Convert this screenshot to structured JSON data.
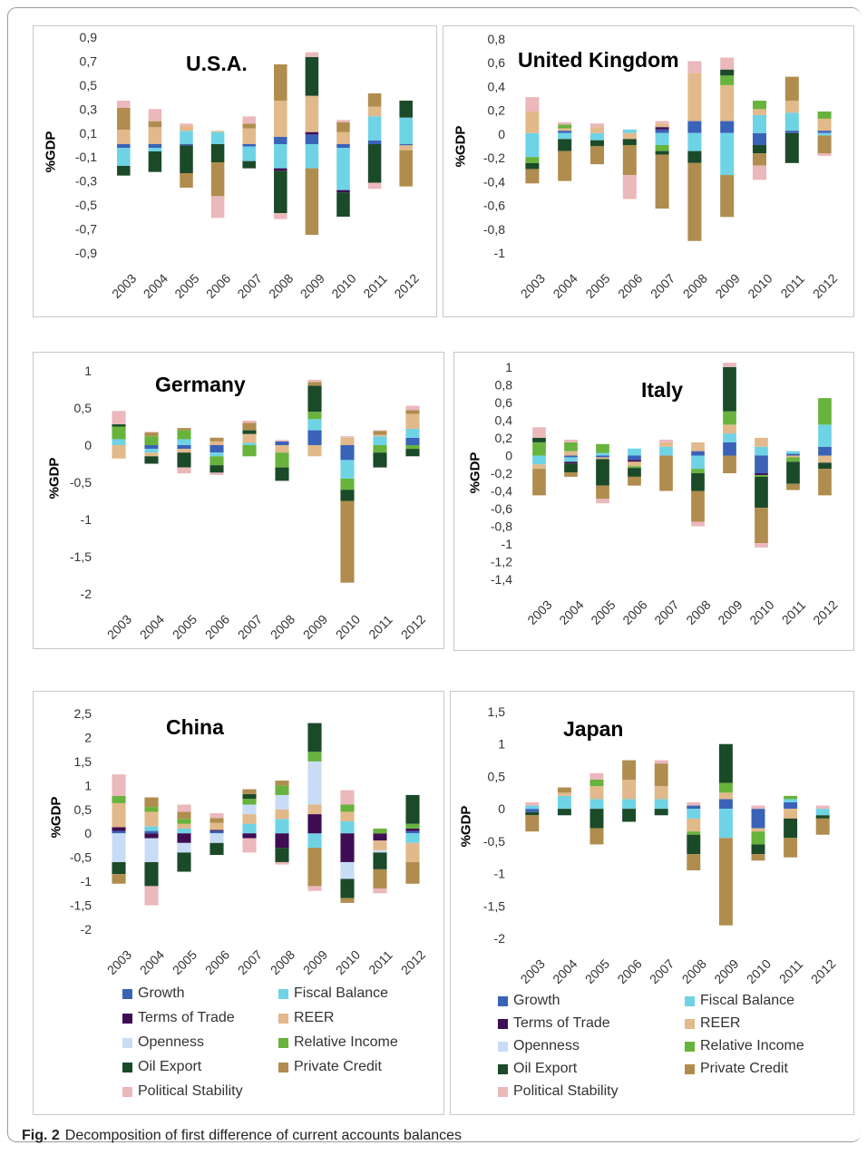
{
  "colors": {
    "Growth": "#3a63b8",
    "Fiscal Balance": "#6fd3e6",
    "Terms of Trade": "#3e0d53",
    "REER": "#e2b98a",
    "Openness": "#c9dcf5",
    "Relative Income": "#67b33c",
    "Oil Export": "#1b4a29",
    "Private Credit": "#b08d4e",
    "Political Stability": "#ebb8bb"
  },
  "legend": {
    "items": [
      "Growth",
      "Fiscal Balance",
      "Terms of Trade",
      "REER",
      "Openness",
      "Relative Income",
      "Oil Export",
      "Private Credit",
      "Political Stability"
    ]
  },
  "caption": {
    "label": "Fig. 2",
    "text": "Decomposition of first difference of current accounts balances"
  },
  "chart_data": [
    {
      "type": "bar",
      "stacked": true,
      "title": "U.S.A.",
      "ylabel": "%GDP",
      "categories": [
        "2003",
        "2004",
        "2005",
        "2006",
        "2007",
        "2008",
        "2009",
        "2010",
        "2011",
        "2012"
      ],
      "ylim": [
        -0.9,
        0.9
      ],
      "yticks": [
        "0,9",
        "0,7",
        "0,5",
        "0,3",
        "0,1",
        "-0,1",
        "-0,3",
        "-0,5",
        "-0,7",
        "-0,9"
      ],
      "series": [
        {
          "name": "Growth",
          "values": [
            -0.03,
            -0.03,
            -0.01,
            0,
            -0.02,
            0.06,
            0.08,
            -0.03,
            0.03,
            -0.01
          ]
        },
        {
          "name": "Fiscal Balance",
          "values": [
            -0.15,
            -0.03,
            0.11,
            0.1,
            -0.12,
            -0.2,
            -0.2,
            -0.35,
            0.2,
            0.22
          ]
        },
        {
          "name": "Terms of Trade",
          "values": [
            0,
            0,
            0,
            0,
            0,
            -0.02,
            0.02,
            -0.02,
            0,
            0
          ]
        },
        {
          "name": "REER",
          "values": [
            0.12,
            0.14,
            0.04,
            0.01,
            0.13,
            0.3,
            0.3,
            0.1,
            0.08,
            -0.04
          ]
        },
        {
          "name": "Openness",
          "values": [
            0,
            0,
            0,
            0,
            0,
            0,
            0,
            0,
            0,
            0
          ]
        },
        {
          "name": "Relative Income",
          "values": [
            0,
            0,
            0,
            0,
            0,
            0,
            0,
            0,
            0,
            0
          ]
        },
        {
          "name": "Oil Export",
          "values": [
            -0.08,
            -0.17,
            -0.23,
            -0.15,
            -0.06,
            -0.35,
            0.32,
            -0.2,
            -0.32,
            0.14
          ]
        },
        {
          "name": "Private Credit",
          "values": [
            0.18,
            0.05,
            -0.12,
            -0.28,
            0.04,
            0.3,
            -0.55,
            0.08,
            0.11,
            -0.3
          ]
        },
        {
          "name": "Political Stability",
          "values": [
            0.06,
            0.1,
            0.02,
            -0.18,
            0.06,
            -0.05,
            0.04,
            0.02,
            -0.05,
            0
          ]
        }
      ]
    },
    {
      "type": "bar",
      "stacked": true,
      "title": "United Kingdom",
      "ylabel": "%GDP",
      "categories": [
        "2003",
        "2004",
        "2005",
        "2006",
        "2007",
        "2008",
        "2009",
        "2010",
        "2011",
        "2012"
      ],
      "ylim": [
        -1,
        0.8
      ],
      "yticks": [
        "0,8",
        "0,6",
        "0,4",
        "0,2",
        "0",
        "-0,2",
        "-0,4",
        "-0,6",
        "-0,8",
        "-1"
      ],
      "series": [
        {
          "name": "Growth",
          "values": [
            0,
            0.02,
            0,
            0,
            0.03,
            0.1,
            0.1,
            -0.1,
            0.02,
            0.02
          ]
        },
        {
          "name": "Fiscal Balance",
          "values": [
            -0.2,
            -0.05,
            -0.06,
            0.03,
            -0.1,
            -0.15,
            -0.35,
            0.15,
            0.15,
            -0.02
          ]
        },
        {
          "name": "Terms of Trade",
          "values": [
            0,
            0,
            0,
            0,
            0.02,
            0,
            0,
            0,
            0,
            0
          ]
        },
        {
          "name": "REER",
          "values": [
            0.18,
            0.02,
            0.05,
            -0.05,
            0.03,
            0.4,
            0.3,
            0.05,
            0.1,
            0.1
          ]
        },
        {
          "name": "Openness",
          "values": [
            0,
            0,
            0,
            0,
            0,
            0,
            0,
            0,
            0,
            0
          ]
        },
        {
          "name": "Relative Income",
          "values": [
            -0.05,
            0.03,
            0,
            0,
            -0.05,
            0,
            0.08,
            0.07,
            0,
            0.06
          ]
        },
        {
          "name": "Oil Export",
          "values": [
            -0.05,
            -0.1,
            -0.05,
            -0.05,
            -0.03,
            -0.1,
            0.05,
            -0.07,
            -0.25,
            0
          ]
        },
        {
          "name": "Private Credit",
          "values": [
            -0.12,
            -0.25,
            -0.15,
            -0.25,
            -0.45,
            -0.65,
            -0.35,
            -0.1,
            0.2,
            -0.15
          ]
        },
        {
          "name": "Political Stability",
          "values": [
            0.12,
            0.02,
            0.03,
            -0.2,
            0.02,
            0.1,
            0.1,
            -0.12,
            0,
            -0.02
          ]
        }
      ]
    },
    {
      "type": "bar",
      "stacked": true,
      "title": "Germany",
      "ylabel": "%GDP",
      "categories": [
        "2003",
        "2004",
        "2005",
        "2006",
        "2007",
        "2008",
        "2009",
        "2010",
        "2011",
        "2012"
      ],
      "ylim": [
        -2,
        1
      ],
      "yticks": [
        "1",
        "0,5",
        "0",
        "-0,5",
        "-1",
        "-1,5",
        "-2"
      ],
      "series": [
        {
          "name": "Growth",
          "values": [
            0,
            -0.05,
            -0.05,
            -0.1,
            0,
            0.05,
            0.2,
            -0.2,
            0,
            0.1
          ]
        },
        {
          "name": "Fiscal Balance",
          "values": [
            0.08,
            -0.05,
            0.08,
            -0.05,
            0.03,
            0,
            0.15,
            -0.25,
            0.12,
            0.12
          ]
        },
        {
          "name": "Terms of Trade",
          "values": [
            0,
            0,
            0,
            0,
            0,
            0,
            0,
            0,
            0,
            0
          ]
        },
        {
          "name": "REER",
          "values": [
            -0.18,
            -0.05,
            -0.05,
            0.05,
            0.12,
            -0.1,
            -0.15,
            0.1,
            0.02,
            0.2
          ]
        },
        {
          "name": "Openness",
          "values": [
            0,
            0,
            0,
            0,
            0,
            0,
            0,
            0,
            0,
            0
          ]
        },
        {
          "name": "Relative Income",
          "values": [
            0.17,
            0.12,
            0.12,
            -0.12,
            -0.15,
            -0.2,
            0.1,
            -0.15,
            -0.1,
            -0.05
          ]
        },
        {
          "name": "Oil Export",
          "values": [
            0.03,
            -0.1,
            -0.2,
            -0.1,
            0.05,
            -0.18,
            0.35,
            -0.15,
            -0.2,
            -0.1
          ]
        },
        {
          "name": "Private Credit",
          "values": [
            0,
            0.05,
            0.03,
            0.05,
            0.1,
            0,
            0.05,
            -1.1,
            0.05,
            0.05
          ]
        },
        {
          "name": "Political Stability",
          "values": [
            0.18,
            0.01,
            -0.08,
            -0.03,
            0.03,
            0.02,
            0.03,
            0.02,
            0.01,
            0.06
          ]
        }
      ]
    },
    {
      "type": "bar",
      "stacked": true,
      "title": "Italy",
      "ylabel": "%GDP",
      "categories": [
        "2003",
        "2004",
        "2005",
        "2006",
        "2007",
        "2008",
        "2009",
        "2010",
        "2011",
        "2012"
      ],
      "ylim": [
        -1.4,
        1
      ],
      "yticks": [
        "1",
        "0,8",
        "0,6",
        "0,4",
        "0,2",
        "0",
        "-0,2",
        "-0,4",
        "-0,6",
        "-0,8",
        "-1",
        "-1,2",
        "-1,4"
      ],
      "series": [
        {
          "name": "Growth",
          "values": [
            0,
            -0.02,
            -0.02,
            -0.05,
            0,
            0.05,
            0.15,
            -0.2,
            0.02,
            0.1
          ]
        },
        {
          "name": "Fiscal Balance",
          "values": [
            -0.1,
            -0.05,
            0.03,
            0.08,
            0.1,
            -0.15,
            0.1,
            0.1,
            0.03,
            0.25
          ]
        },
        {
          "name": "Terms of Trade",
          "values": [
            0,
            -0.02,
            0,
            -0.02,
            0,
            0,
            0,
            -0.02,
            0,
            0
          ]
        },
        {
          "name": "REER",
          "values": [
            -0.05,
            0.05,
            -0.02,
            -0.05,
            0.05,
            0.1,
            0.1,
            0.1,
            -0.02,
            -0.08
          ]
        },
        {
          "name": "Openness",
          "values": [
            0,
            0,
            0,
            0,
            0,
            0,
            0,
            0,
            0,
            0
          ]
        },
        {
          "name": "Relative Income",
          "values": [
            0.15,
            0.1,
            0.1,
            -0.02,
            0,
            -0.05,
            0.15,
            -0.02,
            -0.05,
            0.3
          ]
        },
        {
          "name": "Oil Export",
          "values": [
            0.05,
            -0.1,
            -0.3,
            -0.1,
            0,
            -0.2,
            0.5,
            -0.35,
            -0.25,
            -0.07
          ]
        },
        {
          "name": "Private Credit",
          "values": [
            -0.3,
            -0.05,
            -0.15,
            -0.1,
            -0.4,
            -0.35,
            -0.2,
            -0.4,
            -0.07,
            -0.3
          ]
        },
        {
          "name": "Political Stability",
          "values": [
            0.12,
            0.03,
            -0.05,
            0,
            0.03,
            -0.05,
            0.05,
            -0.05,
            0,
            0
          ]
        }
      ]
    },
    {
      "type": "bar",
      "stacked": true,
      "title": "China",
      "ylabel": "%GDP",
      "categories": [
        "2003",
        "2004",
        "2005",
        "2006",
        "2007",
        "2008",
        "2009",
        "2010",
        "2011",
        "2012"
      ],
      "ylim": [
        -2,
        2.5
      ],
      "yticks": [
        "2,5",
        "2",
        "1,5",
        "1",
        "0,5",
        "0",
        "-0,5",
        "-1",
        "-1,5",
        "-2"
      ],
      "series": [
        {
          "name": "Growth",
          "values": [
            0.05,
            0.05,
            0,
            0.05,
            0,
            0,
            0,
            0,
            0,
            0.05
          ]
        },
        {
          "name": "Fiscal Balance",
          "values": [
            0,
            0.1,
            0.1,
            0,
            0.2,
            0.3,
            -0.3,
            0.25,
            0,
            -0.2
          ]
        },
        {
          "name": "Terms of Trade",
          "values": [
            0.08,
            -0.1,
            -0.2,
            0.02,
            -0.1,
            -0.3,
            0.4,
            -0.6,
            -0.15,
            0.05
          ]
        },
        {
          "name": "REER",
          "values": [
            0.5,
            0.3,
            0.1,
            0.15,
            0.2,
            0.2,
            0.2,
            0.2,
            -0.2,
            -0.4
          ]
        },
        {
          "name": "Openness",
          "values": [
            -0.6,
            -0.5,
            -0.2,
            -0.2,
            0.2,
            0.3,
            0.9,
            -0.35,
            -0.05,
            0
          ]
        },
        {
          "name": "Relative Income",
          "values": [
            0.15,
            0.1,
            0.1,
            0,
            0.12,
            0.2,
            0.2,
            0.15,
            0.1,
            0.1
          ]
        },
        {
          "name": "Oil Export",
          "values": [
            -0.25,
            -0.5,
            -0.4,
            -0.25,
            0.1,
            -0.3,
            0.6,
            -0.4,
            -0.35,
            0.6
          ]
        },
        {
          "name": "Private Credit",
          "values": [
            -0.2,
            0.2,
            0.15,
            0.1,
            0.1,
            0.1,
            -0.8,
            -0.1,
            -0.4,
            -0.45
          ]
        },
        {
          "name": "Political Stability",
          "values": [
            0.45,
            -0.4,
            0.15,
            0.1,
            -0.3,
            -0.05,
            -0.1,
            0.3,
            -0.1,
            0
          ]
        }
      ]
    },
    {
      "type": "bar",
      "stacked": true,
      "title": "Japan",
      "ylabel": "%GDP",
      "categories": [
        "2003",
        "2004",
        "2005",
        "2006",
        "2007",
        "2008",
        "2009",
        "2010",
        "2011",
        "2012"
      ],
      "ylim": [
        -2,
        1.5
      ],
      "yticks": [
        "1,5",
        "1",
        "0,5",
        "0",
        "-0,5",
        "-1",
        "-1,5",
        "-2"
      ],
      "series": [
        {
          "name": "Growth",
          "values": [
            -0.05,
            0,
            0,
            0,
            0,
            0.05,
            0.15,
            -0.3,
            0.1,
            0
          ]
        },
        {
          "name": "Fiscal Balance",
          "values": [
            0.05,
            0.2,
            0.15,
            0.15,
            0.15,
            -0.15,
            -0.45,
            0,
            0.05,
            -0.1
          ]
        },
        {
          "name": "Terms of Trade",
          "values": [
            0,
            0,
            0,
            0,
            0,
            0,
            0,
            0,
            0,
            0
          ]
        },
        {
          "name": "REER",
          "values": [
            0,
            0.05,
            0.2,
            0.3,
            0.2,
            -0.2,
            0.1,
            -0.05,
            -0.15,
            0
          ]
        },
        {
          "name": "Openness",
          "values": [
            0,
            0,
            0,
            0,
            0,
            0,
            0,
            0,
            0,
            0
          ]
        },
        {
          "name": "Relative Income",
          "values": [
            0,
            0,
            0.1,
            0,
            0,
            -0.05,
            0.15,
            -0.2,
            0.05,
            0
          ]
        },
        {
          "name": "Oil Export",
          "values": [
            -0.05,
            -0.1,
            -0.3,
            -0.2,
            -0.1,
            -0.3,
            0.6,
            -0.15,
            -0.3,
            -0.05
          ]
        },
        {
          "name": "Private Credit",
          "values": [
            -0.25,
            0.08,
            -0.25,
            0.3,
            0.35,
            -0.25,
            -1.35,
            -0.1,
            -0.3,
            -0.25
          ]
        },
        {
          "name": "Political Stability",
          "values": [
            0.05,
            0,
            0.1,
            0,
            0.05,
            0.05,
            0,
            0.05,
            0,
            0.05
          ]
        }
      ]
    }
  ]
}
